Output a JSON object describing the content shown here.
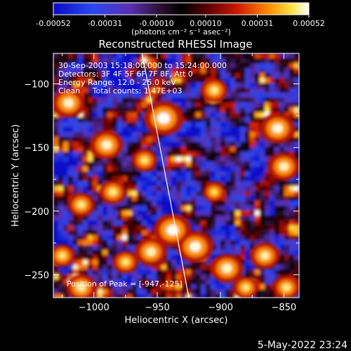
{
  "chart_data": {
    "type": "heatmap",
    "title": "Reconstructed RHESSI Image",
    "xlabel": "Heliocentric X (arcsec)",
    "ylabel": "Heliocentric Y (arcsec)",
    "xlim": [
      -1032,
      -838
    ],
    "ylim": [
      -268,
      -76
    ],
    "x_ticks": [
      -1000,
      -950,
      -900,
      -850
    ],
    "y_ticks": [
      -100,
      -150,
      -200,
      -250
    ],
    "colorbar": {
      "ticks": [
        "-0.00052",
        "-0.00031",
        "-0.00010",
        "0.00010",
        "0.00031",
        "0.00052"
      ],
      "unit_label": "(photons cm⁻² s⁻¹ asec⁻²)",
      "range": [
        -0.00052,
        0.00052
      ]
    },
    "annotations": [
      "30-Sep-2003 15:18:00.000 to 15:24:00.000",
      "Detectors: 3F 4F 5F 6F 7F 8F, Att 0",
      "Energy Range: 12.0 - 25.0 keV",
      "Clean     Total counts: 1.47E+03"
    ],
    "peak_label": "Position of Peak = [-947,-125]",
    "limb_line": [
      [
        -962,
        -76
      ],
      [
        -925,
        -268
      ]
    ],
    "blobs": [
      {
        "x": -945,
        "y": -127,
        "level": 1.0
      },
      {
        "x": -938,
        "y": -215,
        "level": 0.95
      },
      {
        "x": -920,
        "y": -228,
        "level": 0.9
      },
      {
        "x": -895,
        "y": -245,
        "level": 0.8
      },
      {
        "x": -955,
        "y": -232,
        "level": 0.75
      },
      {
        "x": -855,
        "y": -135,
        "level": 0.85
      },
      {
        "x": -850,
        "y": -165,
        "level": 0.75
      },
      {
        "x": -1020,
        "y": -115,
        "level": 0.8
      },
      {
        "x": -1010,
        "y": -260,
        "level": 0.7
      },
      {
        "x": -990,
        "y": -148,
        "level": 0.8
      },
      {
        "x": -1010,
        "y": -195,
        "level": 0.6
      },
      {
        "x": -985,
        "y": -185,
        "level": 0.6
      },
      {
        "x": -960,
        "y": -160,
        "level": 0.55
      },
      {
        "x": -905,
        "y": -105,
        "level": 0.6
      },
      {
        "x": -865,
        "y": -235,
        "level": 0.7
      },
      {
        "x": -848,
        "y": -260,
        "level": 0.6
      },
      {
        "x": -975,
        "y": -240,
        "level": 0.55
      },
      {
        "x": -1025,
        "y": -235,
        "level": 0.55
      },
      {
        "x": -905,
        "y": -185,
        "level": 0.45
      },
      {
        "x": -880,
        "y": -260,
        "level": 0.55
      }
    ]
  },
  "footer": {
    "date": "5-May-2022 23:24"
  }
}
